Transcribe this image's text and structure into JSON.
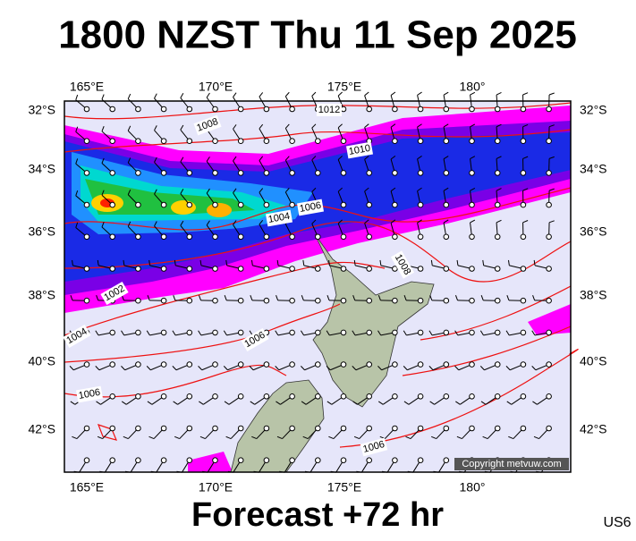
{
  "header": {
    "title": "1800 NZST Thu 11 Sep 2025"
  },
  "map": {
    "lon_labels": [
      "165°E",
      "170°E",
      "175°E",
      "180°"
    ],
    "lat_labels": [
      "32°S",
      "34°S",
      "36°S",
      "38°S",
      "40°S",
      "42°S"
    ],
    "isobar_labels": [
      "1012",
      "1008",
      "1010",
      "1006",
      "1004",
      "1002",
      "1004",
      "1006",
      "1008",
      "1006",
      "1006"
    ],
    "copyright": "Copyright metvuw.com"
  },
  "footer": {
    "forecast": "Forecast +72 hr",
    "region": "US6"
  }
}
